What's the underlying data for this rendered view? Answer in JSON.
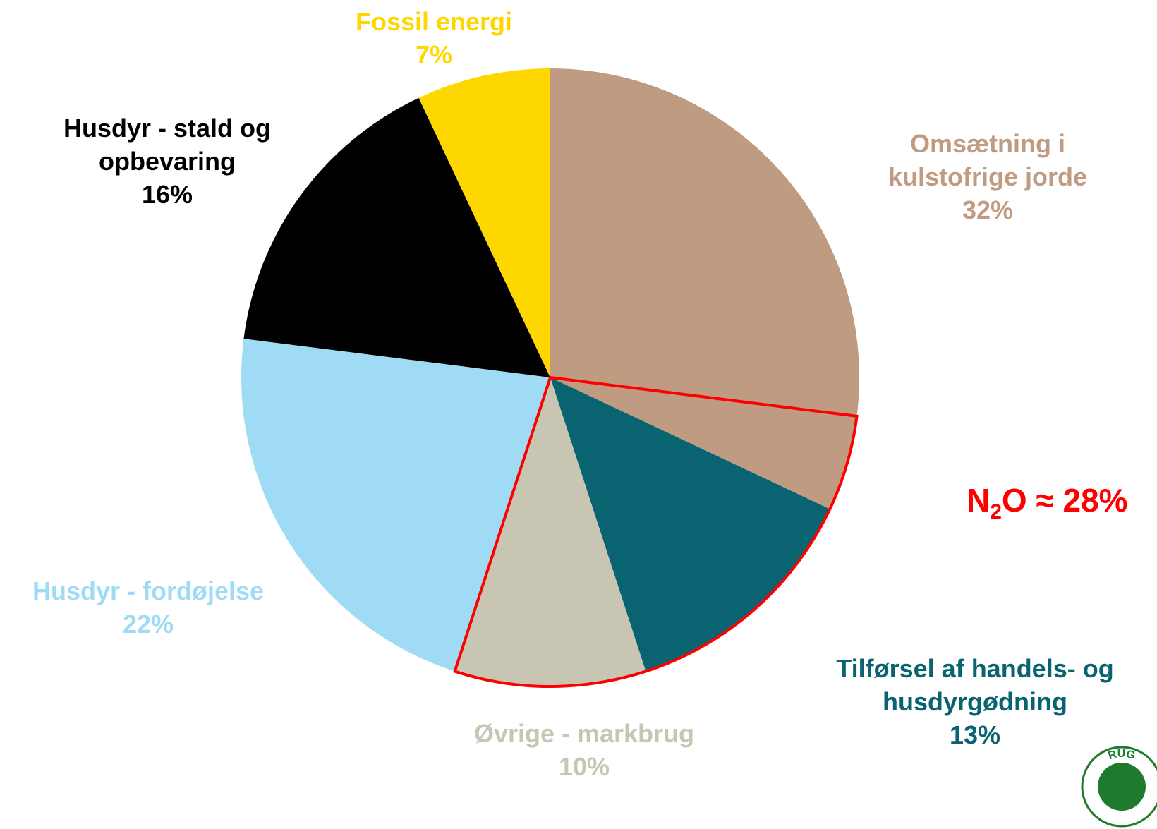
{
  "chart_data": {
    "type": "pie",
    "slices": [
      {
        "label_lines": [
          "Omsætning i",
          "kulstofrige jorde"
        ],
        "percent_label": "32%",
        "value": 32,
        "color": "#bf9b81",
        "label_color": "#bf9b81"
      },
      {
        "label_lines": [
          "Tilførsel af handels- og",
          "husdyrgødning"
        ],
        "percent_label": "13%",
        "value": 13,
        "color": "#0a6370",
        "label_color": "#0a6370"
      },
      {
        "label_lines": [
          "Øvrige - markbrug"
        ],
        "percent_label": "10%",
        "value": 10,
        "color": "#c8c6b2",
        "label_color": "#c8c6b2"
      },
      {
        "label_lines": [
          "Husdyr - fordøjelse"
        ],
        "percent_label": "22%",
        "value": 22,
        "color": "#a0dbf6",
        "label_color": "#a0dbf6"
      },
      {
        "label_lines": [
          "Husdyr - stald og",
          "opbevaring"
        ],
        "percent_label": "16%",
        "value": 16,
        "color": "#000000",
        "label_color": "#000000"
      },
      {
        "label_lines": [
          "Fossil energi"
        ],
        "percent_label": "7%",
        "value": 7,
        "color": "#ffd700",
        "label_color": "#ffd700"
      }
    ],
    "highlight": {
      "main": "N",
      "subscript": "2",
      "rest": "O ≈ 28%",
      "color": "#ff0000",
      "value": 28
    }
  },
  "logo": {
    "text": "RUG",
    "color": "#1e7a2c"
  }
}
